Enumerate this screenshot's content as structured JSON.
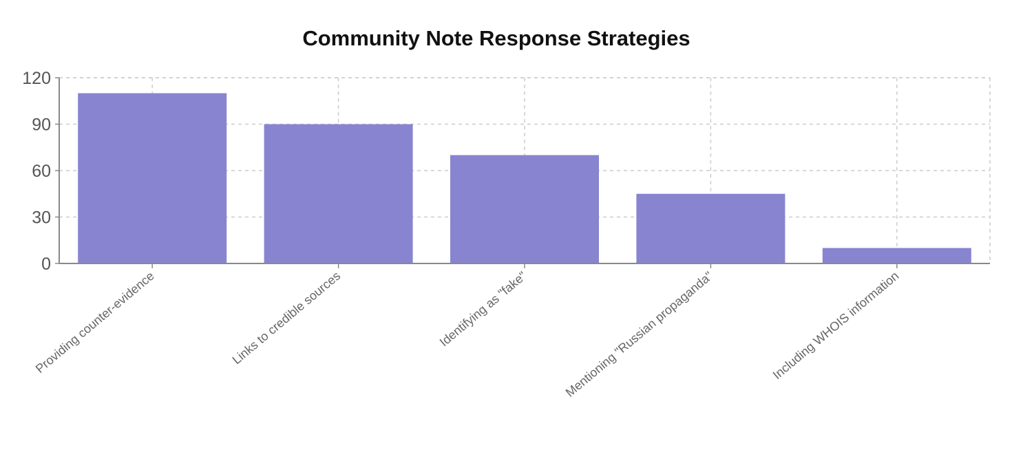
{
  "chart_data": {
    "type": "bar",
    "title": "Community Note Response Strategies",
    "xlabel": "",
    "ylabel": "",
    "categories": [
      "Providing counter-evidence",
      "Links to credible sources",
      "Identifying as \"fake\"",
      "Mentioning \"Russian propaganda\"",
      "Including WHOIS information"
    ],
    "values": [
      110,
      90,
      70,
      45,
      10
    ],
    "ylim": [
      0,
      120
    ],
    "yticks": [
      0,
      30,
      60,
      90,
      120
    ],
    "grid": true,
    "legend": "none",
    "bar_color": "#8884d0"
  }
}
